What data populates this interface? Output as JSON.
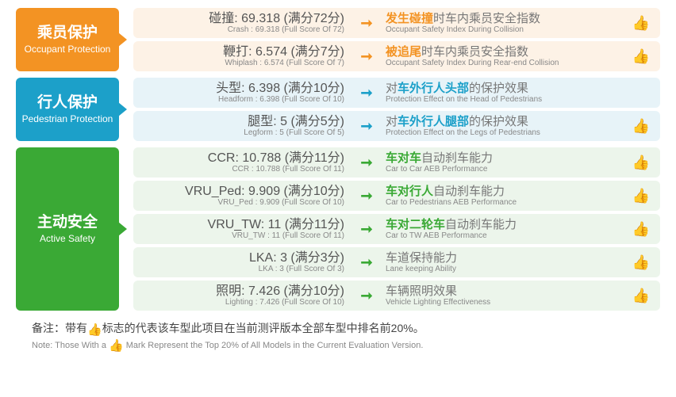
{
  "colors": {
    "occupant_bg": "#f39323",
    "occupant_row_bg": "#fdf2e6",
    "occupant_emph": "#f39323",
    "pedestrian_bg": "#1ca0c9",
    "pedestrian_row_bg": "#e7f3f8",
    "pedestrian_emph": "#1ca0c9",
    "active_bg": "#3aa935",
    "active_row_bg": "#ecf5eb",
    "active_emph": "#3aa935",
    "thumb": "#f39323"
  },
  "sections": [
    {
      "key": "occupant",
      "label_zh": "乘员保护",
      "label_en": "Occupant Protection",
      "rows": [
        {
          "score_zh": "碰撞: 69.318 (满分72分)",
          "score_en": "Crash : 69.318 (Full Score Of 72)",
          "desc_pre": "",
          "desc_emph": "发生碰撞",
          "desc_post": "时车内乘员安全指数",
          "desc_en": "Occupant Safety Index During Collision",
          "thumb": true
        },
        {
          "score_zh": "鞭打: 6.574 (满分7分)",
          "score_en": "Whiplash : 6.574 (Full Score Of 7)",
          "desc_pre": "",
          "desc_emph": "被追尾",
          "desc_post": "时车内乘员安全指数",
          "desc_en": "Occupant Safety Index During Rear-end Collision",
          "thumb": true
        }
      ]
    },
    {
      "key": "pedestrian",
      "label_zh": "行人保护",
      "label_en": "Pedestrian Protection",
      "rows": [
        {
          "score_zh": "头型: 6.398 (满分10分)",
          "score_en": "Headform : 6.398 (Full Score Of 10)",
          "desc_pre": "对",
          "desc_emph": "车外行人头部",
          "desc_post": "的保护效果",
          "desc_en": "Protection Effect on the Head of Pedestrians",
          "thumb": false
        },
        {
          "score_zh": "腿型: 5 (满分5分)",
          "score_en": "Legform : 5 (Full Score Of 5)",
          "desc_pre": "对",
          "desc_emph": "车外行人腿部",
          "desc_post": "的保护效果",
          "desc_en": "Protection Effect on the Legs of Pedestrians",
          "thumb": true
        }
      ]
    },
    {
      "key": "active",
      "label_zh": "主动安全",
      "label_en": "Active Safety",
      "rows": [
        {
          "score_zh": "CCR: 10.788 (满分11分)",
          "score_en": "CCR : 10.788 (Full Score Of 11)",
          "desc_pre": "",
          "desc_emph": "车对车",
          "desc_post": "自动刹车能力",
          "desc_en": "Car to Car AEB Performance",
          "thumb": true
        },
        {
          "score_zh": "VRU_Ped: 9.909 (满分10分)",
          "score_en": "VRU_Ped : 9.909 (Full Score Of 10)",
          "desc_pre": "",
          "desc_emph": "车对行人",
          "desc_post": "自动刹车能力",
          "desc_en": "Car to Pedestrians AEB Performance",
          "thumb": true
        },
        {
          "score_zh": "VRU_TW: 11 (满分11分)",
          "score_en": "VRU_TW : 11 (Full Score Of 11)",
          "desc_pre": "",
          "desc_emph": "车对二轮车",
          "desc_post": "自动刹车能力",
          "desc_en": "Car to TW AEB Performance",
          "thumb": true
        },
        {
          "score_zh": "LKA: 3 (满分3分)",
          "score_en": "LKA : 3 (Full Score Of 3)",
          "desc_pre": "",
          "desc_emph": "",
          "desc_post": "车道保持能力",
          "desc_en": "Lane keeping Ability",
          "thumb": true
        },
        {
          "score_zh": "照明: 7.426 (满分10分)",
          "score_en": "Lighting : 7.426 (Full Score Of 10)",
          "desc_pre": "",
          "desc_emph": "",
          "desc_post": "车辆照明效果",
          "desc_en": "Vehicle Lighting Effectiveness",
          "thumb": true
        }
      ]
    }
  ],
  "note": {
    "zh_pre": "备注：带有",
    "zh_post": "标志的代表该车型此项目在当前测评版本全部车型中排名前20%。",
    "en_pre": "Note: Those With a ",
    "en_post": " Mark Represent the Top 20% of All Models in the Current Evaluation Version."
  },
  "arrow_glyph": "➞",
  "thumb_glyph": "👍"
}
